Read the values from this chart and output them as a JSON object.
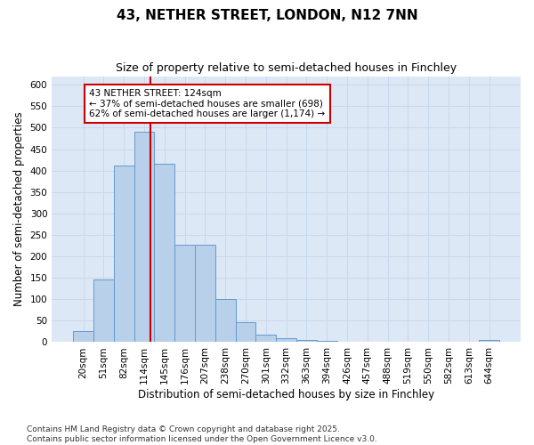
{
  "title": "43, NETHER STREET, LONDON, N12 7NN",
  "subtitle": "Size of property relative to semi-detached houses in Finchley",
  "xlabel": "Distribution of semi-detached houses by size in Finchley",
  "ylabel": "Number of semi-detached properties",
  "categories": [
    "20sqm",
    "51sqm",
    "82sqm",
    "114sqm",
    "145sqm",
    "176sqm",
    "207sqm",
    "238sqm",
    "270sqm",
    "301sqm",
    "332sqm",
    "363sqm",
    "394sqm",
    "426sqm",
    "457sqm",
    "488sqm",
    "519sqm",
    "550sqm",
    "582sqm",
    "613sqm",
    "644sqm"
  ],
  "values": [
    25,
    147,
    412,
    490,
    415,
    228,
    228,
    100,
    47,
    18,
    10,
    5,
    2,
    1,
    0,
    0,
    0,
    0,
    0,
    0,
    5
  ],
  "bar_color": "#b8d0ea",
  "bar_edge_color": "#6699cc",
  "marker_bin_index": 3,
  "annotation_title": "43 NETHER STREET: 124sqm",
  "annotation_line1": "← 37% of semi-detached houses are smaller (698)",
  "annotation_line2": "62% of semi-detached houses are larger (1,174) →",
  "annotation_box_color": "#ffffff",
  "annotation_box_edge_color": "#cc0000",
  "vline_color": "#cc0000",
  "grid_color": "#c8d8ec",
  "background_color": "#dce8f5",
  "ylim": [
    0,
    620
  ],
  "yticks": [
    0,
    50,
    100,
    150,
    200,
    250,
    300,
    350,
    400,
    450,
    500,
    550,
    600
  ],
  "footnote": "Contains HM Land Registry data © Crown copyright and database right 2025.\nContains public sector information licensed under the Open Government Licence v3.0.",
  "title_fontsize": 11,
  "subtitle_fontsize": 9,
  "label_fontsize": 8.5,
  "tick_fontsize": 7.5,
  "annotation_fontsize": 7.5,
  "footnote_fontsize": 6.5
}
